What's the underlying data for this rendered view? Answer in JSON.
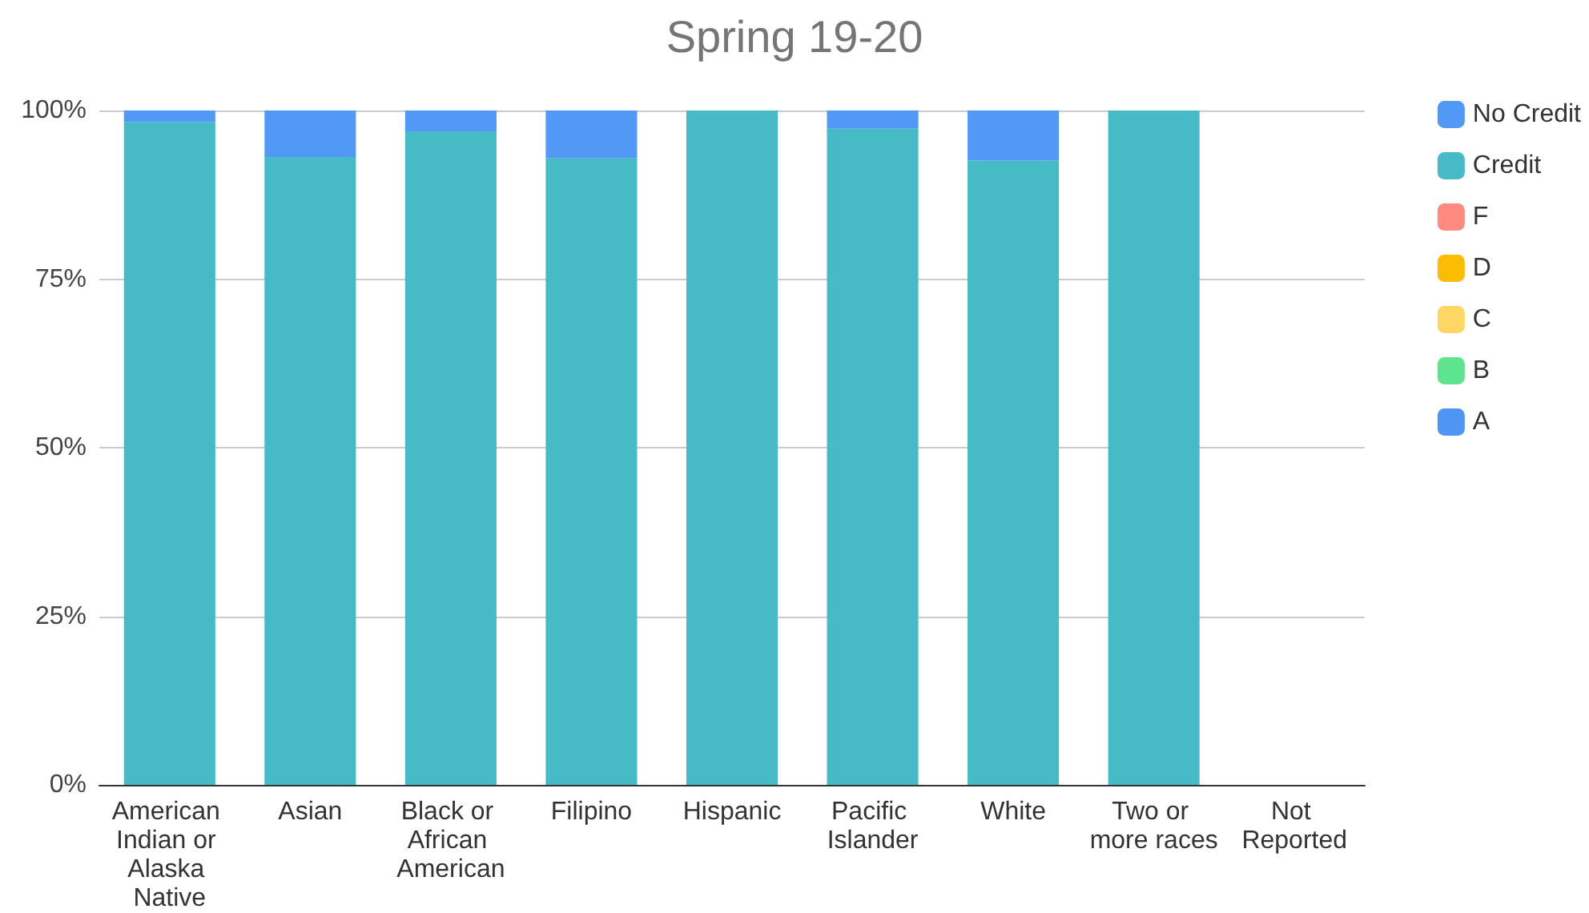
{
  "chart_data": {
    "type": "bar",
    "title": "Spring 19-20",
    "stacked": true,
    "categories": [
      "American Indian or Alaska Native",
      "Asian",
      "Black or African American",
      "Filipino",
      "Hispanic",
      "Pacific Islander",
      "White",
      "Two or more races",
      "Not Reported"
    ],
    "series": [
      {
        "name": "A",
        "color": "#4f95f4",
        "values": [
          0,
          0,
          0,
          0,
          0,
          0,
          0,
          0,
          0
        ]
      },
      {
        "name": "B",
        "color": "#5ee38f",
        "values": [
          0,
          0,
          0,
          0,
          0,
          0,
          0,
          0,
          0
        ]
      },
      {
        "name": "C",
        "color": "#fdd663",
        "values": [
          0,
          0,
          0,
          0,
          0,
          0,
          0,
          0,
          0
        ]
      },
      {
        "name": "D",
        "color": "#fbbc04",
        "values": [
          0,
          0,
          0,
          0,
          0,
          0,
          0,
          0,
          0
        ]
      },
      {
        "name": "F",
        "color": "#ff8a80",
        "values": [
          0,
          0,
          0,
          0,
          0,
          0,
          0,
          0,
          0
        ]
      },
      {
        "name": "Credit",
        "color": "#46bbc6",
        "values": [
          98.3,
          93.1,
          96.9,
          92.9,
          100,
          97.3,
          92.6,
          100,
          0
        ]
      },
      {
        "name": "No Credit",
        "color": "#5199f5",
        "values": [
          1.7,
          6.9,
          3.1,
          7.1,
          0,
          2.7,
          7.4,
          0,
          0
        ]
      }
    ],
    "ylim": [
      0,
      100
    ],
    "yticks": [
      {
        "value": 0,
        "label": "0%"
      },
      {
        "value": 25,
        "label": "25%"
      },
      {
        "value": 50,
        "label": "50%"
      },
      {
        "value": 75,
        "label": "75%"
      },
      {
        "value": 100,
        "label": "100%"
      }
    ],
    "grid": "y",
    "legend": "right"
  }
}
